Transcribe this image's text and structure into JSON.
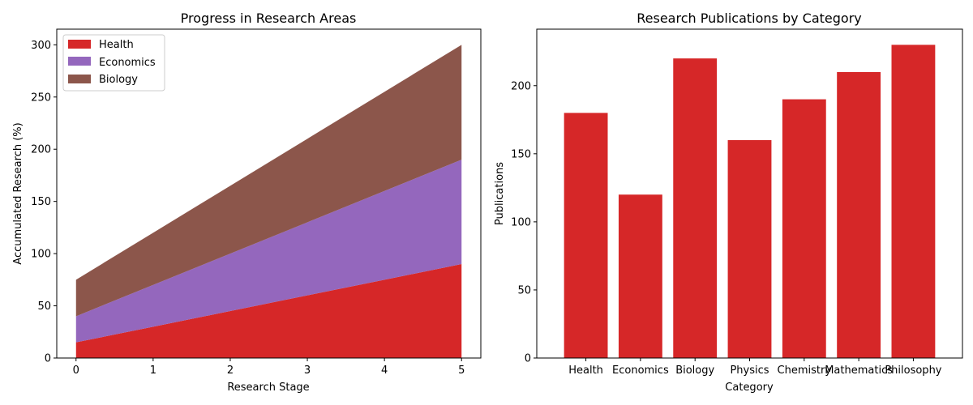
{
  "chart_data": [
    {
      "type": "area",
      "stacked": true,
      "title": "Progress in Research Areas",
      "xlabel": "Research Stage",
      "ylabel": "Accumulated Research (%)",
      "x": [
        0,
        1,
        2,
        3,
        4,
        5
      ],
      "xlim": [
        -0.25,
        5.25
      ],
      "ylim": [
        0,
        315
      ],
      "xticks": [
        0,
        1,
        2,
        3,
        4,
        5
      ],
      "yticks": [
        0,
        50,
        100,
        150,
        200,
        250,
        300
      ],
      "legend_position": "upper-left",
      "grid": false,
      "series": [
        {
          "name": "Health",
          "color": "#d62728",
          "values": [
            15,
            30,
            45,
            60,
            75,
            90
          ]
        },
        {
          "name": "Economics",
          "color": "#9467bd",
          "values": [
            25,
            40,
            55,
            70,
            85,
            100
          ]
        },
        {
          "name": "Biology",
          "color": "#8c564b",
          "values": [
            35,
            50,
            65,
            80,
            95,
            110
          ]
        }
      ]
    },
    {
      "type": "bar",
      "title": "Research Publications by Category",
      "xlabel": "Category",
      "ylabel": "Publications",
      "categories": [
        "Health",
        "Economics",
        "Biology",
        "Physics",
        "Chemistry",
        "Mathematics",
        "Philosophy"
      ],
      "values": [
        180,
        120,
        220,
        160,
        190,
        210,
        230
      ],
      "color": "#d62728",
      "ylim": [
        0,
        241.5
      ],
      "yticks": [
        0,
        50,
        100,
        150,
        200
      ],
      "grid": false
    }
  ]
}
